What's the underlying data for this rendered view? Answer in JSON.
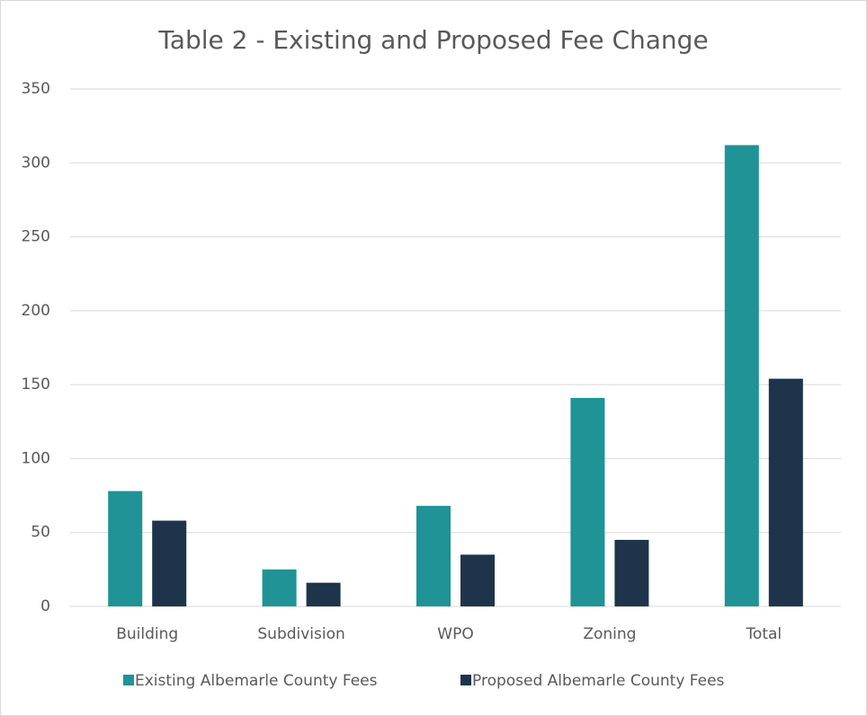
{
  "chart_data": {
    "type": "bar",
    "title": "Table 2 - Existing and Proposed Fee Change",
    "categories": [
      "Building",
      "Subdivision",
      "WPO",
      "Zoning",
      "Total"
    ],
    "series": [
      {
        "name": "Existing Albemarle County Fees",
        "color": "#1f9396",
        "values": [
          78,
          25,
          68,
          141,
          312
        ]
      },
      {
        "name": "Proposed Albemarle County Fees",
        "color": "#1e344b",
        "values": [
          58,
          16,
          35,
          45,
          154
        ]
      }
    ],
    "ylim": [
      0,
      350
    ],
    "yticks": [
      0,
      50,
      100,
      150,
      200,
      250,
      300,
      350
    ],
    "grid": true,
    "legend": "bottom"
  }
}
